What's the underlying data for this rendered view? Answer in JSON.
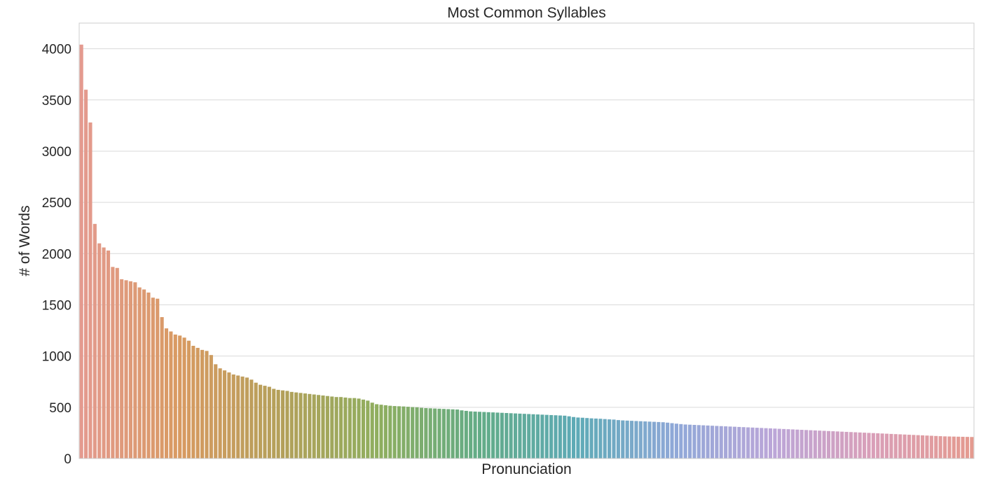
{
  "chart_data": {
    "type": "bar",
    "title": "Most Common Syllables",
    "xlabel": "Pronunciation",
    "ylabel": "# of Words",
    "ylim": [
      0,
      4250
    ],
    "yticks": [
      0,
      500,
      1000,
      1500,
      2000,
      2500,
      3000,
      3500,
      4000
    ],
    "grid": true,
    "x_tick_labels_visible": false,
    "palette": [
      "#e49a8f",
      "#d89a61",
      "#b4a05a",
      "#8fae5f",
      "#63ac86",
      "#5eaab6",
      "#8fa8d8",
      "#bca6d8",
      "#d99fb8",
      "#e49a8f"
    ],
    "values": [
      4040,
      3600,
      3280,
      2290,
      2100,
      2060,
      2030,
      1870,
      1860,
      1750,
      1740,
      1730,
      1720,
      1670,
      1650,
      1620,
      1570,
      1560,
      1380,
      1270,
      1240,
      1210,
      1200,
      1180,
      1150,
      1100,
      1080,
      1060,
      1050,
      1010,
      920,
      880,
      860,
      840,
      820,
      810,
      800,
      790,
      770,
      740,
      720,
      710,
      700,
      680,
      670,
      665,
      660,
      650,
      645,
      640,
      635,
      630,
      625,
      620,
      615,
      610,
      605,
      600,
      600,
      595,
      590,
      590,
      585,
      575,
      565,
      545,
      530,
      525,
      520,
      515,
      512,
      510,
      508,
      505,
      502,
      500,
      495,
      492,
      490,
      488,
      486,
      484,
      482,
      480,
      478,
      470,
      465,
      460,
      458,
      456,
      454,
      452,
      450,
      448,
      446,
      444,
      442,
      440,
      438,
      436,
      434,
      432,
      430,
      428,
      426,
      424,
      422,
      420,
      418,
      412,
      405,
      400,
      398,
      395,
      392,
      390,
      388,
      385,
      382,
      380,
      375,
      372,
      370,
      368,
      366,
      364,
      362,
      360,
      358,
      356,
      354,
      350,
      345,
      340,
      336,
      332,
      330,
      328,
      326,
      324,
      322,
      320,
      318,
      316,
      314,
      312,
      310,
      308,
      306,
      304,
      302,
      300,
      298,
      296,
      294,
      292,
      290,
      288,
      286,
      284,
      282,
      280,
      278,
      276,
      274,
      272,
      270,
      268,
      266,
      264,
      262,
      260,
      258,
      256,
      254,
      252,
      250,
      248,
      246,
      244,
      242,
      240,
      238,
      236,
      234,
      232,
      230,
      228,
      226,
      224,
      222,
      220,
      218,
      216,
      215,
      214,
      213,
      212,
      211,
      210
    ]
  }
}
